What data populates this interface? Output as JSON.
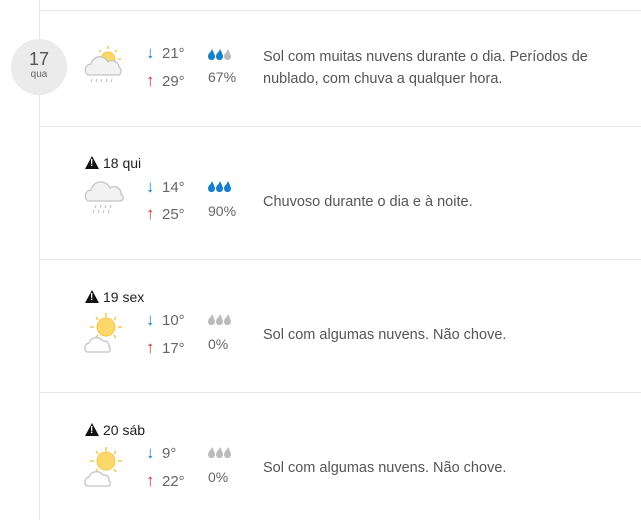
{
  "colors": {
    "rain": "#1a7fc9",
    "dry": "#bbbbbb",
    "down": "#1a7fc9",
    "up": "#d32f2f"
  },
  "days": [
    {
      "day": "17",
      "weekday": "qua",
      "label": "",
      "warning": false,
      "icon": "sun-cloud-rain-icon",
      "min": "21°",
      "max": "29°",
      "drops_filled": 2,
      "precip": "67%",
      "desc": "Sol com muitas nuvens durante o dia. Períodos de nublado, com chuva a qualquer hora."
    },
    {
      "label": "18 qui",
      "warning": true,
      "icon": "cloud-rain-icon",
      "min": "14°",
      "max": "25°",
      "drops_filled": 3,
      "precip": "90%",
      "desc": "Chuvoso durante o dia e à noite."
    },
    {
      "label": "19 sex",
      "warning": true,
      "icon": "sun-cloud-icon",
      "min": "10°",
      "max": "17°",
      "drops_filled": 0,
      "precip": "0%",
      "desc": "Sol com algumas nuvens. Não chove."
    },
    {
      "label": "20 sáb",
      "warning": true,
      "icon": "sun-cloud-icon",
      "min": "9°",
      "max": "22°",
      "drops_filled": 0,
      "precip": "0%",
      "desc": "Sol com algumas nuvens. Não chove."
    }
  ]
}
